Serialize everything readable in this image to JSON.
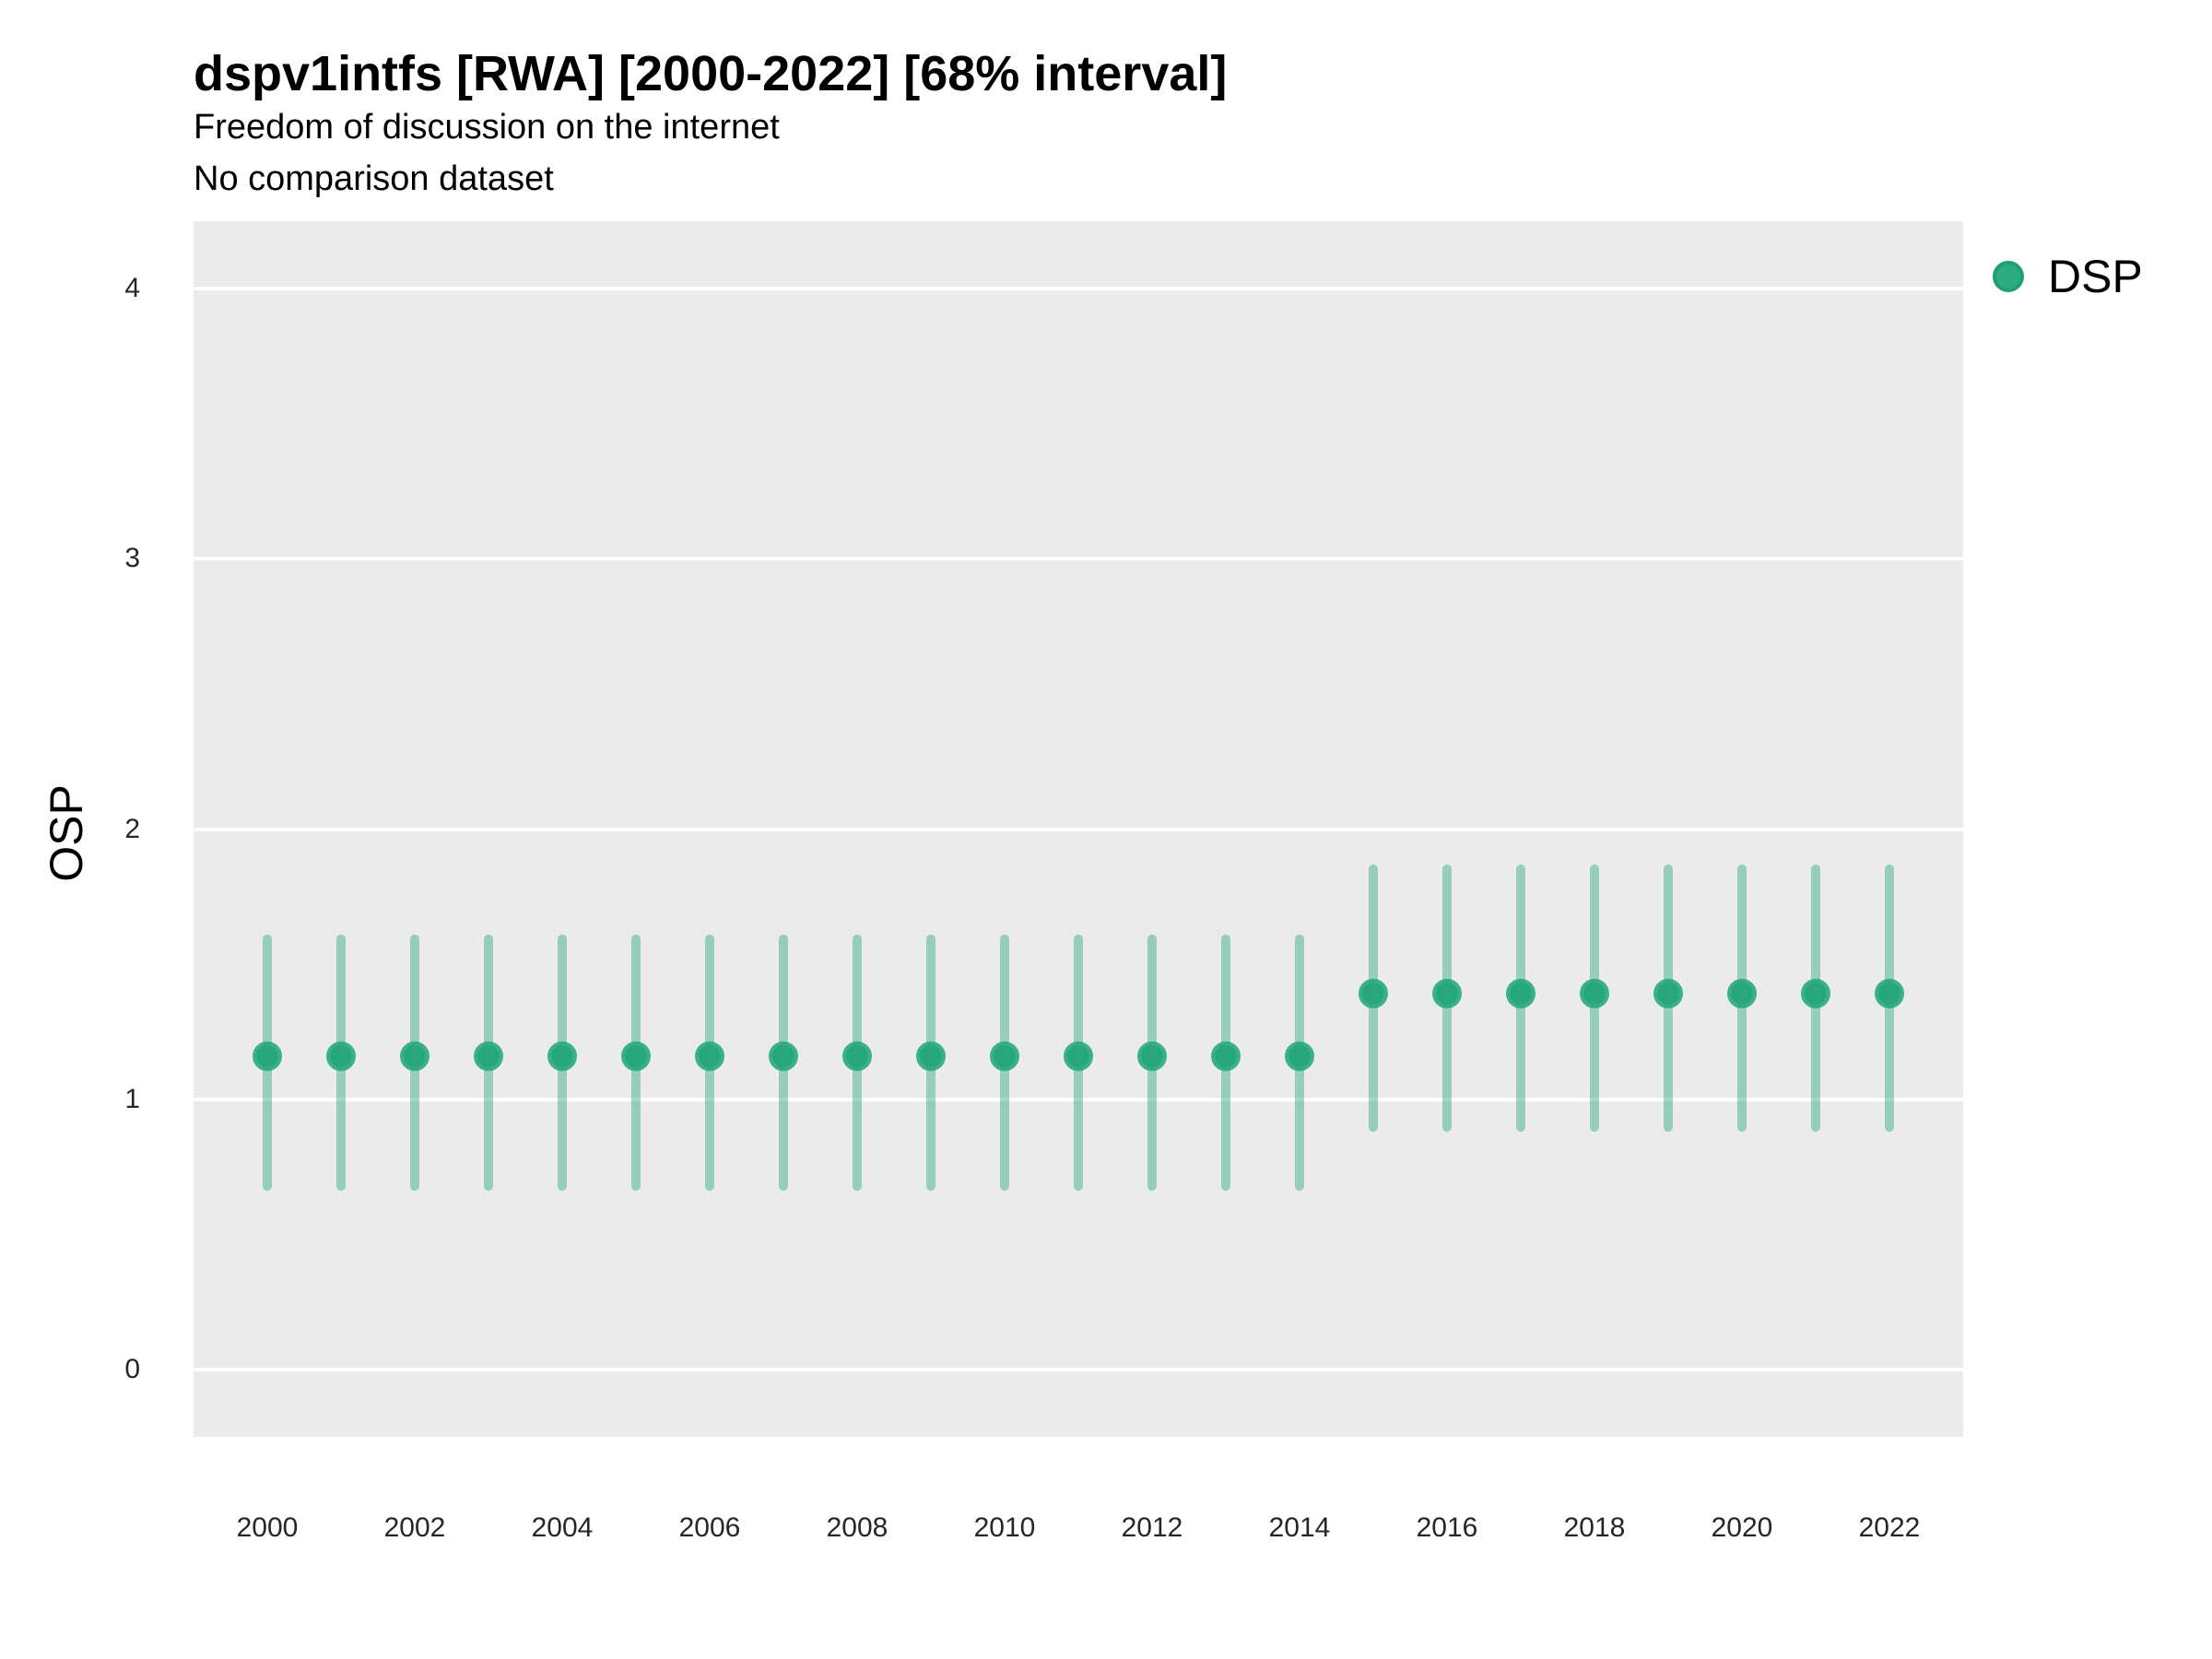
{
  "header": {
    "title": "dspv1intfs [RWA] [2000-2022] [68% interval]",
    "subtitle_line1": "Freedom of discussion on the internet",
    "subtitle_line2": "No comparison dataset"
  },
  "legend": {
    "label": "DSP"
  },
  "colors": {
    "panel_bg": "#ebebeb",
    "gridline": "#ffffff",
    "point_fill": "#27a67d",
    "point_border": "#3ab18a",
    "interval_color": "#2aa87e",
    "interval_alpha": 0.45,
    "legend_dot_fill": "#2cab81",
    "legend_dot_border": "#1f9d73",
    "title_color": "#000000",
    "tick_color": "#262626"
  },
  "chart_data": {
    "type": "pointrange",
    "title": "dspv1intfs [RWA] [2000-2022] [68% interval]",
    "subtitle": "Freedom of discussion on the internet / No comparison dataset",
    "xlabel": "",
    "ylabel": "OSP",
    "legend_position": "right",
    "grid": "major-horizontal",
    "xlim": [
      1999,
      2023
    ],
    "ylim": [
      -0.25,
      4.25
    ],
    "yticks": [
      0,
      1,
      2,
      3,
      4
    ],
    "xticks": [
      2000,
      2002,
      2004,
      2006,
      2008,
      2010,
      2012,
      2014,
      2016,
      2018,
      2020,
      2022
    ],
    "interval_level": "68%",
    "series": [
      {
        "name": "DSP",
        "points": [
          {
            "year": 2000,
            "est": 1.16,
            "lo": 0.66,
            "hi": 1.61
          },
          {
            "year": 2001,
            "est": 1.16,
            "lo": 0.66,
            "hi": 1.61
          },
          {
            "year": 2002,
            "est": 1.16,
            "lo": 0.66,
            "hi": 1.61
          },
          {
            "year": 2003,
            "est": 1.16,
            "lo": 0.66,
            "hi": 1.61
          },
          {
            "year": 2004,
            "est": 1.16,
            "lo": 0.66,
            "hi": 1.61
          },
          {
            "year": 2005,
            "est": 1.16,
            "lo": 0.66,
            "hi": 1.61
          },
          {
            "year": 2006,
            "est": 1.16,
            "lo": 0.66,
            "hi": 1.61
          },
          {
            "year": 2007,
            "est": 1.16,
            "lo": 0.66,
            "hi": 1.61
          },
          {
            "year": 2008,
            "est": 1.16,
            "lo": 0.66,
            "hi": 1.61
          },
          {
            "year": 2009,
            "est": 1.16,
            "lo": 0.66,
            "hi": 1.61
          },
          {
            "year": 2010,
            "est": 1.16,
            "lo": 0.66,
            "hi": 1.61
          },
          {
            "year": 2011,
            "est": 1.16,
            "lo": 0.66,
            "hi": 1.61
          },
          {
            "year": 2012,
            "est": 1.16,
            "lo": 0.66,
            "hi": 1.61
          },
          {
            "year": 2013,
            "est": 1.16,
            "lo": 0.66,
            "hi": 1.61
          },
          {
            "year": 2014,
            "est": 1.16,
            "lo": 0.66,
            "hi": 1.61
          },
          {
            "year": 2015,
            "est": 1.39,
            "lo": 0.88,
            "hi": 1.87
          },
          {
            "year": 2016,
            "est": 1.39,
            "lo": 0.88,
            "hi": 1.87
          },
          {
            "year": 2017,
            "est": 1.39,
            "lo": 0.88,
            "hi": 1.87
          },
          {
            "year": 2018,
            "est": 1.39,
            "lo": 0.88,
            "hi": 1.87
          },
          {
            "year": 2019,
            "est": 1.39,
            "lo": 0.88,
            "hi": 1.87
          },
          {
            "year": 2020,
            "est": 1.39,
            "lo": 0.88,
            "hi": 1.87
          },
          {
            "year": 2021,
            "est": 1.39,
            "lo": 0.88,
            "hi": 1.87
          },
          {
            "year": 2022,
            "est": 1.39,
            "lo": 0.88,
            "hi": 1.87
          }
        ]
      }
    ]
  }
}
